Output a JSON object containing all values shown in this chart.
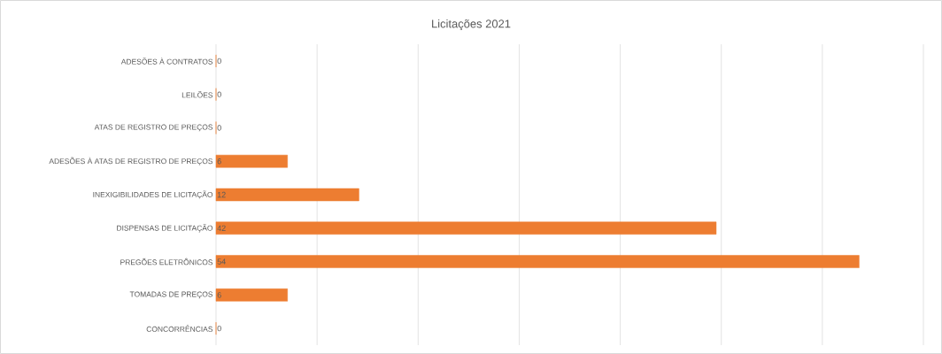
{
  "chart_data": {
    "type": "bar",
    "orientation": "horizontal",
    "title": "Licitações 2021",
    "categories": [
      "ADESÕES À CONTRATOS",
      "LEILÕES",
      "ATAS DE REGISTRO DE PREÇOS",
      "ADESÕES À ATAS DE REGISTRO DE PREÇOS",
      "INEXIGIBILIDADES DE LICITAÇÃO",
      "DISPENSAS DE LICITAÇÃO",
      "PREGÕES ELETRÔNICOS",
      "TOMADAS DE PREÇOS",
      "CONCORRÊNCIAS"
    ],
    "values": [
      0,
      0,
      0,
      6,
      12,
      42,
      54,
      6,
      0
    ],
    "data_labels": true,
    "tick_labels": "y",
    "color": "#ed7d31",
    "grid": "x"
  }
}
